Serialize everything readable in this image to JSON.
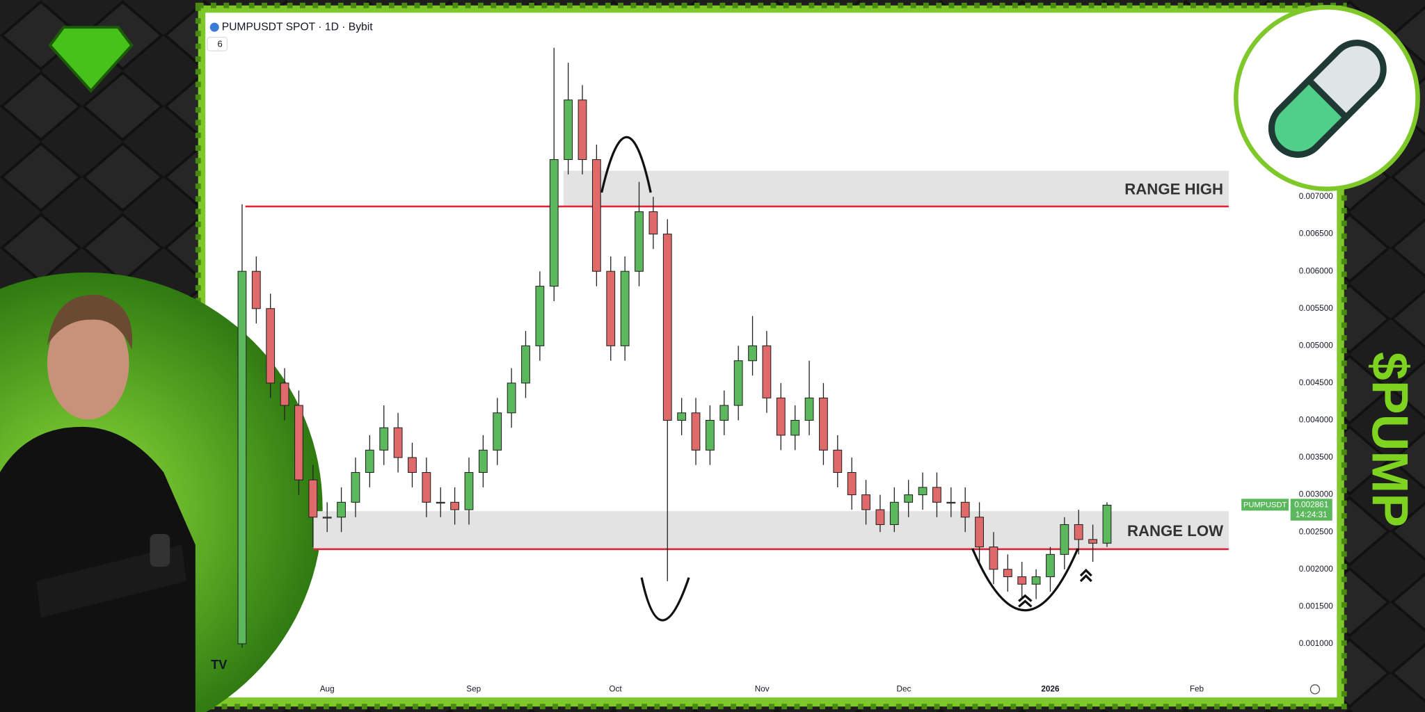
{
  "chart_data": {
    "type": "candlestick",
    "title": "PUMPUSDT SPOT · 1D · Bybit",
    "indicator_count": "6",
    "thumbnail_text": "$PUMP",
    "up_color": "#5cb85c",
    "down_color": "#e06a6a",
    "categories": [
      null,
      null,
      null,
      null,
      null,
      null,
      null,
      null,
      null,
      null,
      null,
      null,
      null,
      null,
      null,
      null,
      null,
      null,
      null,
      null,
      null,
      null,
      null,
      null,
      null,
      null,
      null,
      null,
      null,
      null,
      null,
      null,
      null,
      null,
      null,
      null,
      null,
      null,
      null,
      null,
      null,
      null,
      null,
      null,
      null,
      null,
      null,
      null,
      null,
      null,
      null,
      null,
      null,
      null,
      null,
      null,
      null,
      null,
      null,
      null,
      null,
      null
    ],
    "open": [
      0.001,
      0.006,
      0.0055,
      0.0045,
      0.0042,
      0.0032,
      0.0027,
      0.0027,
      0.0029,
      0.0033,
      0.0036,
      0.0039,
      0.0035,
      0.0033,
      0.0029,
      0.0029,
      0.0028,
      0.0033,
      0.0036,
      0.0041,
      0.0045,
      0.005,
      0.0058,
      0.0075,
      0.0083,
      0.0075,
      0.006,
      0.005,
      0.006,
      0.0068,
      0.0065,
      0.004,
      0.0041,
      0.0036,
      0.004,
      0.0042,
      0.0048,
      0.005,
      0.0043,
      0.0038,
      0.004,
      0.0043,
      0.0036,
      0.0033,
      0.003,
      0.0028,
      0.0026,
      0.0029,
      0.003,
      0.0031,
      0.0029,
      0.0029,
      0.0027,
      0.0023,
      0.002,
      0.0019,
      0.0018,
      0.0019,
      0.0022,
      0.0026,
      0.0024,
      0.00235
    ],
    "high": [
      0.0069,
      0.0062,
      0.0057,
      0.0047,
      0.0044,
      0.0034,
      0.0029,
      0.0031,
      0.0035,
      0.0038,
      0.0042,
      0.0041,
      0.0037,
      0.0035,
      0.0031,
      0.0031,
      0.0035,
      0.0038,
      0.0043,
      0.0047,
      0.0052,
      0.006,
      0.009,
      0.0088,
      0.0085,
      0.0077,
      0.0062,
      0.0062,
      0.0072,
      0.007,
      0.0067,
      0.0043,
      0.0043,
      0.0042,
      0.0044,
      0.005,
      0.0054,
      0.0052,
      0.0045,
      0.0042,
      0.0048,
      0.0045,
      0.0038,
      0.0035,
      0.0032,
      0.003,
      0.0031,
      0.0032,
      0.0033,
      0.0033,
      0.0031,
      0.0031,
      0.0029,
      0.0025,
      0.0022,
      0.0021,
      0.002,
      0.0023,
      0.0027,
      0.0028,
      0.0026,
      0.0029
    ],
    "low": [
      0.00095,
      0.0053,
      0.0043,
      0.004,
      0.003,
      0.0023,
      0.0025,
      0.0025,
      0.0027,
      0.0031,
      0.0034,
      0.0033,
      0.0031,
      0.0027,
      0.0027,
      0.0026,
      0.0026,
      0.0031,
      0.0034,
      0.0039,
      0.0043,
      0.0048,
      0.0056,
      0.0073,
      0.0073,
      0.0058,
      0.0048,
      0.0048,
      0.0058,
      0.0063,
      0.00184,
      0.0038,
      0.0034,
      0.0034,
      0.0038,
      0.004,
      0.0046,
      0.0041,
      0.0036,
      0.0036,
      0.0038,
      0.0034,
      0.0031,
      0.0028,
      0.0026,
      0.0025,
      0.0025,
      0.0027,
      0.0028,
      0.0027,
      0.0027,
      0.0025,
      0.0021,
      0.0018,
      0.0017,
      0.0016,
      0.0016,
      0.0017,
      0.002,
      0.0022,
      0.0021,
      0.0023
    ],
    "close": [
      0.006,
      0.0055,
      0.0045,
      0.0042,
      0.0032,
      0.0027,
      0.0027,
      0.0029,
      0.0033,
      0.0036,
      0.0039,
      0.0035,
      0.0033,
      0.0029,
      0.0029,
      0.0028,
      0.0033,
      0.0036,
      0.0041,
      0.0045,
      0.005,
      0.0058,
      0.0075,
      0.0083,
      0.0075,
      0.006,
      0.005,
      0.006,
      0.0068,
      0.0065,
      0.004,
      0.0041,
      0.0036,
      0.004,
      0.0042,
      0.0048,
      0.005,
      0.0043,
      0.0038,
      0.004,
      0.0043,
      0.0036,
      0.0033,
      0.003,
      0.0028,
      0.0026,
      0.0029,
      0.003,
      0.0031,
      0.0029,
      0.0029,
      0.0027,
      0.0023,
      0.002,
      0.0019,
      0.0018,
      0.0019,
      0.0022,
      0.0026,
      0.0024,
      0.00235,
      0.002861
    ],
    "xlim": [
      -2.46,
      73.3
    ],
    "xticks": [
      {
        "value": 6,
        "label": "Aug"
      },
      {
        "value": 16.33,
        "label": "Sep"
      },
      {
        "value": 26.33,
        "label": "Oct"
      },
      {
        "value": 36.67,
        "label": "Nov"
      },
      {
        "value": 46.67,
        "label": "Dec"
      },
      {
        "value": 57,
        "label": "2026"
      },
      {
        "value": 67.33,
        "label": "Feb"
      }
    ],
    "ylim": [
      0.00056,
      0.00952
    ],
    "yticks": [
      {
        "value": 0.001,
        "label": "0.001000"
      },
      {
        "value": 0.0015,
        "label": "0.001500"
      },
      {
        "value": 0.002,
        "label": "0.002000"
      },
      {
        "value": 0.0025,
        "label": "0.002500"
      },
      {
        "value": 0.003,
        "label": "0.003000"
      },
      {
        "value": 0.0035,
        "label": "0.003500"
      },
      {
        "value": 0.004,
        "label": "0.004000"
      },
      {
        "value": 0.0045,
        "label": "0.004500"
      },
      {
        "value": 0.005,
        "label": "0.005000"
      },
      {
        "value": 0.0055,
        "label": "0.005500"
      },
      {
        "value": 0.006,
        "label": "0.006000"
      },
      {
        "value": 0.0065,
        "label": "0.006500"
      },
      {
        "value": 0.007,
        "label": "0.007000"
      }
    ],
    "zones": [
      {
        "label": "RANGE HIGH",
        "from": 0.00687,
        "to": 0.00735,
        "line": 0.00687
      },
      {
        "label": "RANGE LOW",
        "from": 0.00227,
        "to": 0.00278,
        "line": 0.00227
      }
    ],
    "price_tag": {
      "name": "PUMPUSDT",
      "value": 0.002861,
      "countdown": "14:24:31"
    }
  }
}
